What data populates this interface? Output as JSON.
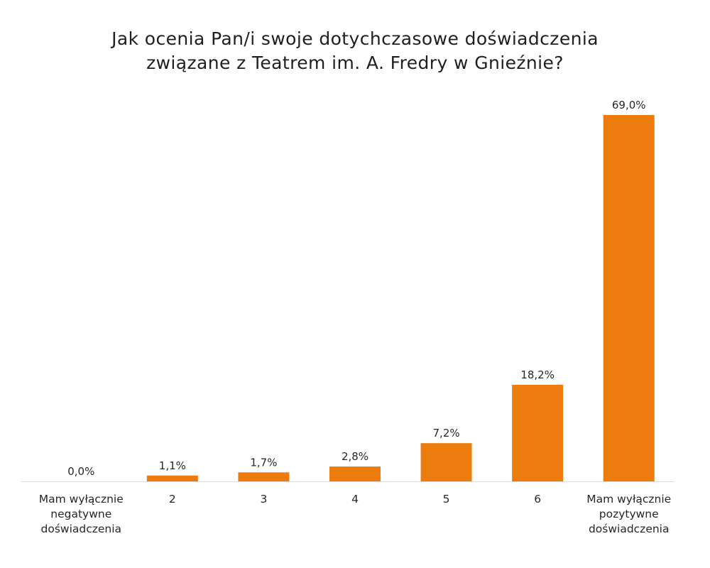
{
  "chart_data": {
    "type": "bar",
    "title": "Jak ocenia Pan/i swoje dotychczasowe doświadczenia związane z Teatrem im. A. Fredry w Gnieźnie?",
    "title_lines": [
      "Jak ocenia Pan/i swoje dotychczasowe doświadczenia",
      "związane z Teatrem im. A. Fredry w Gnieźnie?"
    ],
    "categories": [
      "Mam wyłącznie negatywne doświadczenia",
      "2",
      "3",
      "4",
      "5",
      "6",
      "Mam wyłącznie pozytywne doświadczenia"
    ],
    "category_lines": [
      [
        "Mam wyłącznie",
        "negatywne",
        "doświadczenia"
      ],
      [
        "2"
      ],
      [
        "3"
      ],
      [
        "4"
      ],
      [
        "5"
      ],
      [
        "6"
      ],
      [
        "Mam wyłącznie",
        "pozytywne",
        "doświadczenia"
      ]
    ],
    "values": [
      0.0,
      1.1,
      1.7,
      2.8,
      7.2,
      18.2,
      69.0
    ],
    "value_labels": [
      "0,0%",
      "1,1%",
      "1,7%",
      "2,8%",
      "7,2%",
      "18,2%",
      "69,0%"
    ],
    "ylim": [
      0,
      69
    ],
    "xlabel": "",
    "ylabel": "",
    "grid": false,
    "legend": "none",
    "bar_color": "#EC7C0E",
    "axis_color": "#d9d9d9",
    "text_color": "#262626"
  }
}
